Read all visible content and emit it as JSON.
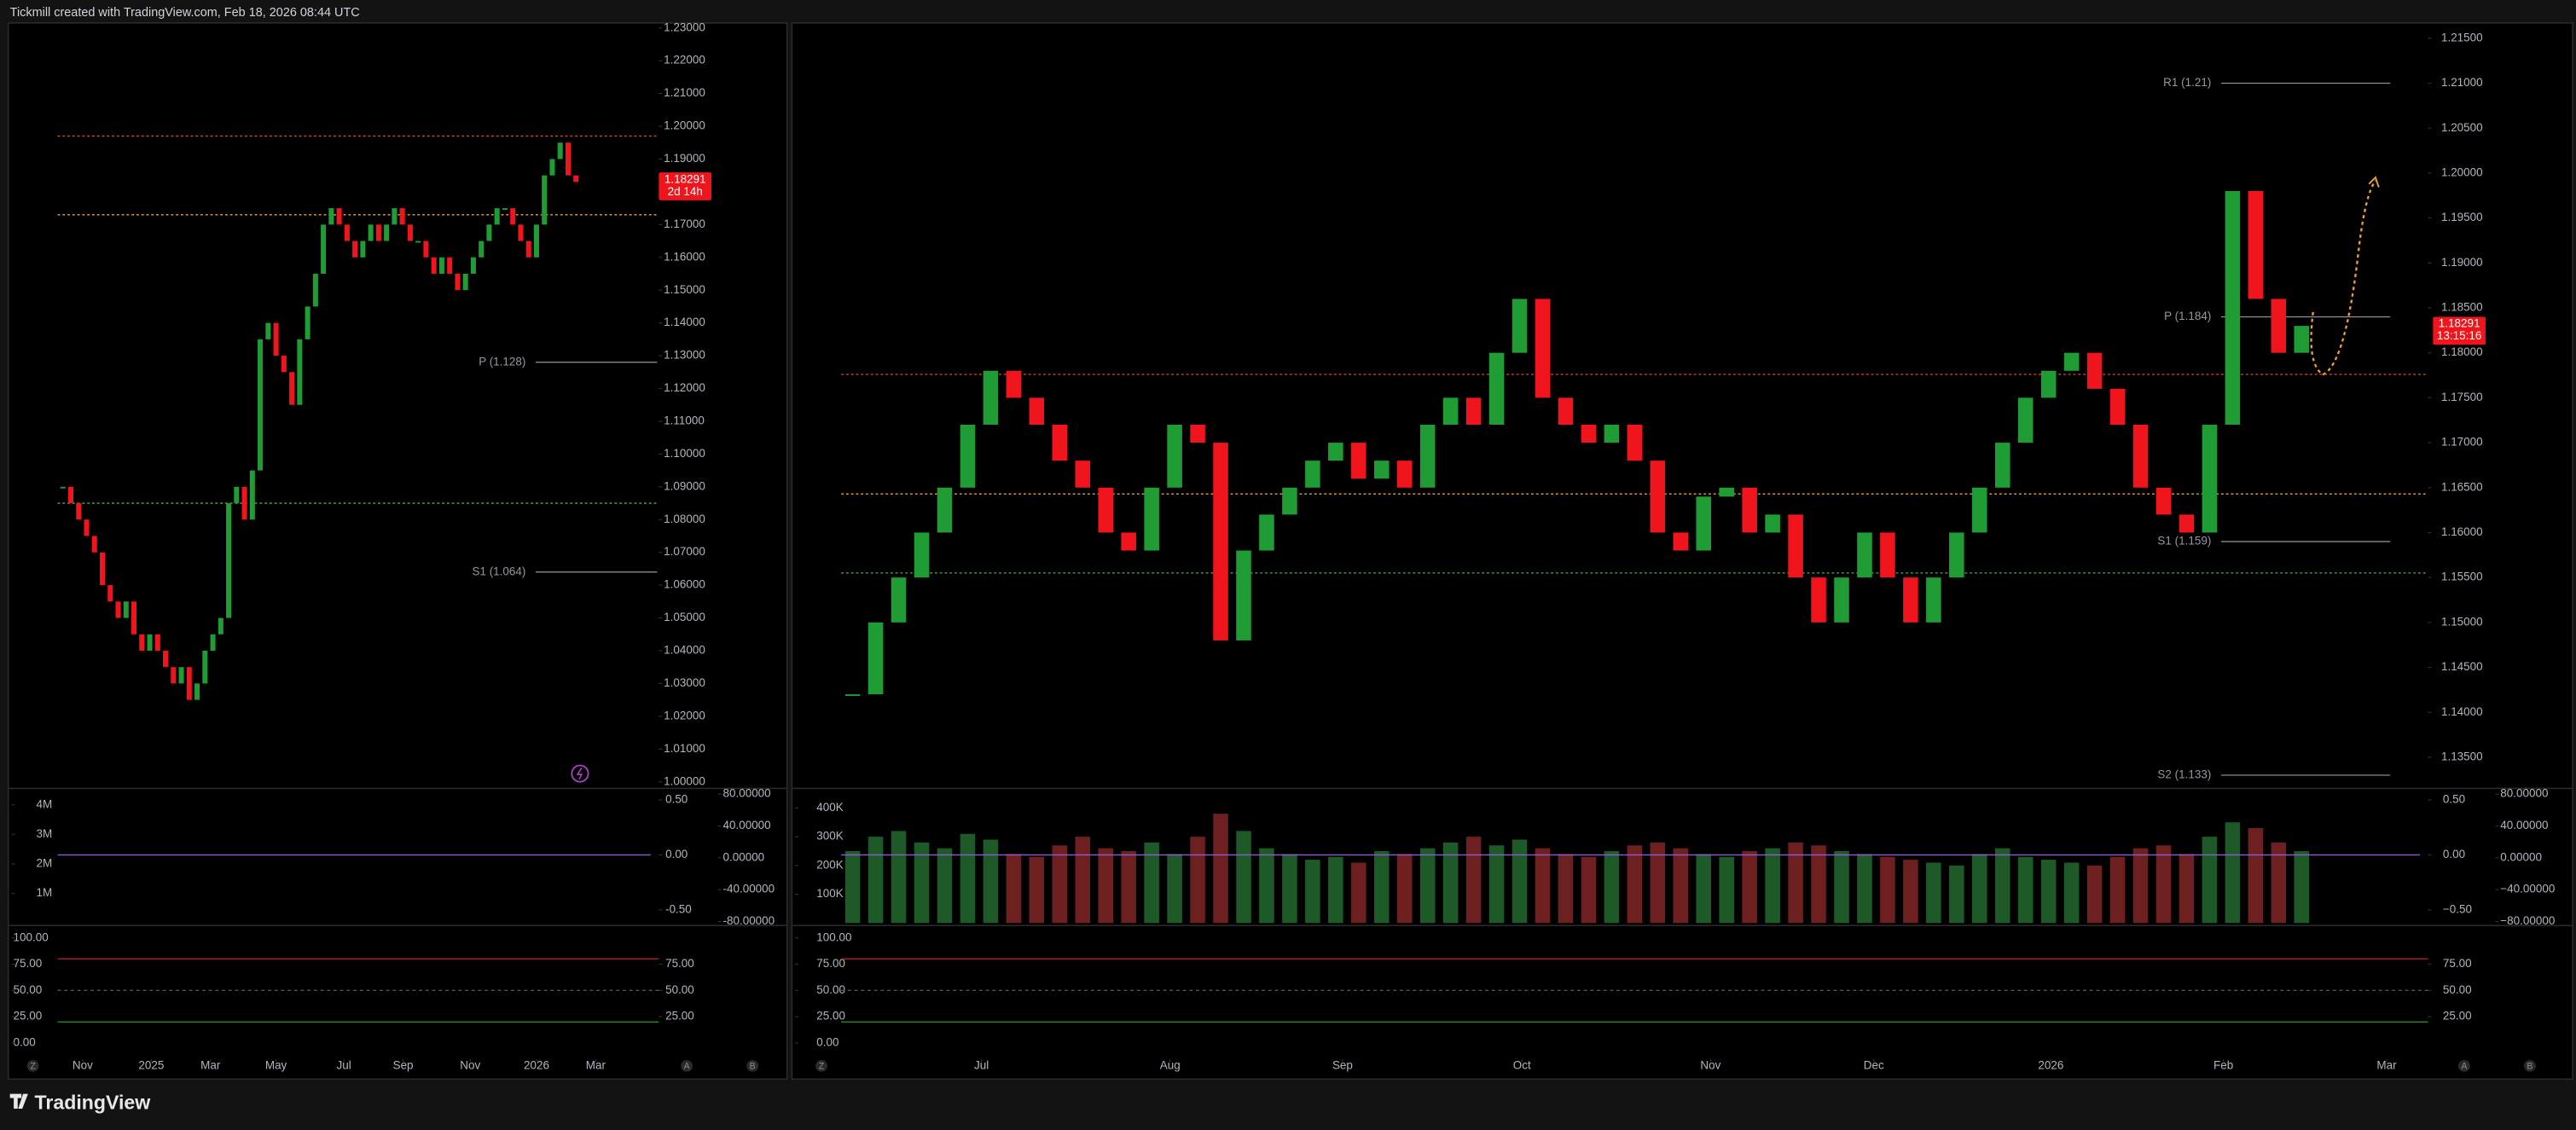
{
  "header": "Tickmill created with TradingView.com, Feb 18, 2026 08:44 UTC",
  "footer": {
    "brand": "TradingView"
  },
  "chart_data": [
    {
      "type": "candlestick",
      "values": [
        1.09,
        1.085,
        1.08,
        1.075,
        1.07,
        1.06,
        1.055,
        1.05,
        1.055,
        1.045,
        1.04,
        1.045,
        1.04,
        1.035,
        1.03,
        1.035,
        1.025,
        1.03,
        1.04,
        1.045,
        1.05,
        1.085,
        1.09,
        1.08,
        1.095,
        1.135,
        1.14,
        1.13,
        1.125,
        1.115,
        1.135,
        1.145,
        1.155,
        1.17,
        1.175,
        1.17,
        1.165,
        1.16,
        1.165,
        1.17,
        1.165,
        1.17,
        1.175,
        1.17,
        1.165,
        1.165,
        1.16,
        1.155,
        1.16,
        1.155,
        1.15,
        1.155,
        1.16,
        1.165,
        1.17,
        1.175,
        1.175,
        1.17,
        1.165,
        1.16,
        1.17,
        1.185,
        1.19,
        1.195,
        1.185,
        1.183
      ],
      "colors": {
        "up": "#1f9d34",
        "down": "#f0141c"
      },
      "xlim": [
        -6.5,
        75.5
      ],
      "xticks": [
        {
          "value": 2.5,
          "label": "Nov"
        },
        {
          "value": 11.2,
          "label": "2025"
        },
        {
          "value": 18.7,
          "label": "Mar"
        },
        {
          "value": 27.0,
          "label": "May"
        },
        {
          "value": 35.6,
          "label": "Jul"
        },
        {
          "value": 43.1,
          "label": "Sep"
        },
        {
          "value": 51.6,
          "label": "Nov"
        },
        {
          "value": 60.0,
          "label": "2026"
        },
        {
          "value": 67.5,
          "label": "Mar"
        }
      ],
      "ylim": [
        0.999,
        1.2315
      ],
      "yticks": [
        {
          "value": 1.0,
          "label": "1.00000"
        },
        {
          "value": 1.01,
          "label": "1.01000"
        },
        {
          "value": 1.02,
          "label": "1.02000"
        },
        {
          "value": 1.03,
          "label": "1.03000"
        },
        {
          "value": 1.04,
          "label": "1.04000"
        },
        {
          "value": 1.05,
          "label": "1.05000"
        },
        {
          "value": 1.06,
          "label": "1.06000"
        },
        {
          "value": 1.07,
          "label": "1.07000"
        },
        {
          "value": 1.08,
          "label": "1.08000"
        },
        {
          "value": 1.09,
          "label": "1.09000"
        },
        {
          "value": 1.1,
          "label": "1.10000"
        },
        {
          "value": 1.11,
          "label": "1.11000"
        },
        {
          "value": 1.12,
          "label": "1.12000"
        },
        {
          "value": 1.13,
          "label": "1.13000"
        },
        {
          "value": 1.14,
          "label": "1.14000"
        },
        {
          "value": 1.15,
          "label": "1.15000"
        },
        {
          "value": 1.16,
          "label": "1.16000"
        },
        {
          "value": 1.17,
          "label": "1.17000"
        },
        {
          "value": 1.18,
          "label": "1.18000"
        },
        {
          "value": 1.19,
          "label": "1.19000"
        },
        {
          "value": 1.2,
          "label": "1.20000"
        },
        {
          "value": 1.21,
          "label": "1.21000"
        },
        {
          "value": 1.22,
          "label": "1.22000"
        },
        {
          "value": 1.23,
          "label": "1.23000"
        }
      ],
      "levels": [
        {
          "label": "P (1.128)",
          "value": 1.128
        },
        {
          "label": "S1 (1.064)",
          "value": 1.064
        }
      ],
      "hlines": [
        {
          "value": 1.197,
          "color": "#e0483e"
        },
        {
          "value": 1.173,
          "color": "#f0a030"
        },
        {
          "value": 1.085,
          "color": "#4caf50"
        }
      ],
      "last_price": {
        "value": 1.18291,
        "timer": "2d 14h"
      },
      "volume": {
        "ylim": [
          0,
          4390000
        ],
        "yticks": [
          {
            "value": 4000000,
            "label": "4M"
          },
          {
            "value": 3000000,
            "label": "3M"
          },
          {
            "value": 2000000,
            "label": "2M"
          },
          {
            "value": 1000000,
            "label": "1M"
          }
        ]
      },
      "oscillator": {
        "ylim": [
          -0.62,
          0.56
        ],
        "yticks": [
          {
            "value": 0.5,
            "label": "0.50"
          },
          {
            "value": 0,
            "label": "0.00"
          },
          {
            "value": -0.5,
            "label": "-0.50"
          }
        ]
      },
      "momentum": {
        "ylim": [
          -82,
          81
        ],
        "yticks": [
          {
            "value": 80,
            "label": "80.00000"
          },
          {
            "value": 40,
            "label": "40.00000"
          },
          {
            "value": 0,
            "label": "0.00000"
          },
          {
            "value": -40,
            "label": "-40.00000"
          },
          {
            "value": -80,
            "label": "-80.00000"
          }
        ]
      },
      "stochastic": {
        "ylim": [
          -15.6,
          109.4
        ],
        "left_ticks": [
          {
            "value": 100,
            "label": "100.00"
          },
          {
            "value": 75,
            "label": "75.00"
          },
          {
            "value": 50,
            "label": "50.00"
          },
          {
            "value": 25,
            "label": "25.00"
          },
          {
            "value": 0,
            "label": "0.00"
          }
        ],
        "right_ticks": [
          {
            "value": 75,
            "label": "75.00"
          },
          {
            "value": 50,
            "label": "50.00"
          },
          {
            "value": 25,
            "label": "25.00"
          }
        ],
        "levels": [
          80,
          50,
          20
        ]
      },
      "controls": [
        "Z",
        "A",
        "B"
      ]
    },
    {
      "type": "candlestick",
      "values": [
        1.142,
        1.15,
        1.155,
        1.16,
        1.165,
        1.172,
        1.178,
        1.175,
        1.172,
        1.168,
        1.165,
        1.16,
        1.158,
        1.165,
        1.172,
        1.17,
        1.148,
        1.158,
        1.162,
        1.165,
        1.168,
        1.17,
        1.166,
        1.168,
        1.165,
        1.172,
        1.175,
        1.172,
        1.18,
        1.186,
        1.175,
        1.172,
        1.17,
        1.172,
        1.168,
        1.16,
        1.158,
        1.164,
        1.165,
        1.16,
        1.162,
        1.155,
        1.15,
        1.155,
        1.16,
        1.155,
        1.15,
        1.155,
        1.16,
        1.165,
        1.17,
        1.175,
        1.178,
        1.18,
        1.176,
        1.172,
        1.165,
        1.162,
        1.16,
        1.172,
        1.198,
        1.186,
        1.18,
        1.183
      ],
      "colors": {
        "up": "#1f9d34",
        "down": "#f0141c"
      },
      "xlim": [
        -2.5,
        68.5
      ],
      "xticks": [
        {
          "value": 5.6,
          "label": "Jul"
        },
        {
          "value": 13.8,
          "label": "Aug"
        },
        {
          "value": 21.3,
          "label": "Sep"
        },
        {
          "value": 29.1,
          "label": "Oct"
        },
        {
          "value": 37.3,
          "label": "Nov"
        },
        {
          "value": 44.4,
          "label": "Dec"
        },
        {
          "value": 52.1,
          "label": "2026"
        },
        {
          "value": 59.6,
          "label": "Feb"
        },
        {
          "value": 66.7,
          "label": "Mar"
        }
      ],
      "ylim": [
        1.1319,
        1.2167
      ],
      "yticks": [
        {
          "value": 1.135,
          "label": "1.13500"
        },
        {
          "value": 1.14,
          "label": "1.14000"
        },
        {
          "value": 1.145,
          "label": "1.14500"
        },
        {
          "value": 1.15,
          "label": "1.15000"
        },
        {
          "value": 1.155,
          "label": "1.15500"
        },
        {
          "value": 1.16,
          "label": "1.16000"
        },
        {
          "value": 1.165,
          "label": "1.16500"
        },
        {
          "value": 1.17,
          "label": "1.17000"
        },
        {
          "value": 1.175,
          "label": "1.17500"
        },
        {
          "value": 1.18,
          "label": "1.18000"
        },
        {
          "value": 1.185,
          "label": "1.18500"
        },
        {
          "value": 1.19,
          "label": "1.19000"
        },
        {
          "value": 1.195,
          "label": "1.19500"
        },
        {
          "value": 1.2,
          "label": "1.20000"
        },
        {
          "value": 1.205,
          "label": "1.20500"
        },
        {
          "value": 1.21,
          "label": "1.21000"
        },
        {
          "value": 1.215,
          "label": "1.21500"
        }
      ],
      "levels": [
        {
          "label": "R1 (1.21)",
          "value": 1.21
        },
        {
          "label": "P (1.184)",
          "value": 1.184
        },
        {
          "label": "S1 (1.159)",
          "value": 1.159
        },
        {
          "label": "S2 (1.133)",
          "value": 1.133
        }
      ],
      "hlines": [
        {
          "value": 1.1776,
          "color": "#e0483e"
        },
        {
          "value": 1.1643,
          "color": "#f0a030"
        },
        {
          "value": 1.1555,
          "color": "#4caf50"
        }
      ],
      "last_price": {
        "value": 1.18291,
        "timer": "13:15:16"
      },
      "volume": {
        "ylim": [
          0,
          451000
        ],
        "values": [
          250000,
          300000,
          320000,
          280000,
          260000,
          310000,
          290000,
          240000,
          230000,
          270000,
          300000,
          260000,
          250000,
          280000,
          240000,
          300000,
          380000,
          320000,
          260000,
          240000,
          220000,
          230000,
          210000,
          250000,
          240000,
          260000,
          280000,
          300000,
          270000,
          290000,
          260000,
          240000,
          230000,
          250000,
          270000,
          280000,
          260000,
          240000,
          230000,
          250000,
          260000,
          280000,
          270000,
          250000,
          240000,
          230000,
          220000,
          210000,
          200000,
          240000,
          260000,
          230000,
          220000,
          210000,
          200000,
          230000,
          260000,
          270000,
          240000,
          300000,
          350000,
          330000,
          280000,
          250000
        ],
        "yticks": [
          {
            "value": 400000,
            "label": "400K"
          },
          {
            "value": 300000,
            "label": "300K"
          },
          {
            "value": 200000,
            "label": "200K"
          },
          {
            "value": 100000,
            "label": "100K"
          }
        ]
      },
      "oscillator": {
        "ylim": [
          -0.62,
          0.56
        ],
        "yticks": [
          {
            "value": 0.5,
            "label": "0.50"
          },
          {
            "value": 0,
            "label": "0.00"
          },
          {
            "value": -0.5,
            "label": "−0.50"
          }
        ]
      },
      "momentum": {
        "ylim": [
          -82,
          81
        ],
        "yticks": [
          {
            "value": 80,
            "label": "80.00000"
          },
          {
            "value": 40,
            "label": "40.00000"
          },
          {
            "value": 0,
            "label": "0.00000"
          },
          {
            "value": -40,
            "label": "−40.00000"
          },
          {
            "value": -80,
            "label": "−80.00000"
          }
        ]
      },
      "stochastic": {
        "ylim": [
          -15.6,
          109.4
        ],
        "left_ticks": [
          {
            "value": 100,
            "label": "100.00"
          },
          {
            "value": 75,
            "label": "75.00"
          },
          {
            "value": 50,
            "label": "50.00"
          },
          {
            "value": 25,
            "label": "25.00"
          },
          {
            "value": 0,
            "label": "0.00"
          }
        ],
        "right_ticks": [
          {
            "value": 75,
            "label": "75.00"
          },
          {
            "value": 50,
            "label": "50.00"
          },
          {
            "value": 25,
            "label": "25.00"
          }
        ],
        "levels": [
          80,
          50,
          20
        ]
      },
      "controls": [
        "Z",
        "A",
        "B"
      ]
    }
  ]
}
